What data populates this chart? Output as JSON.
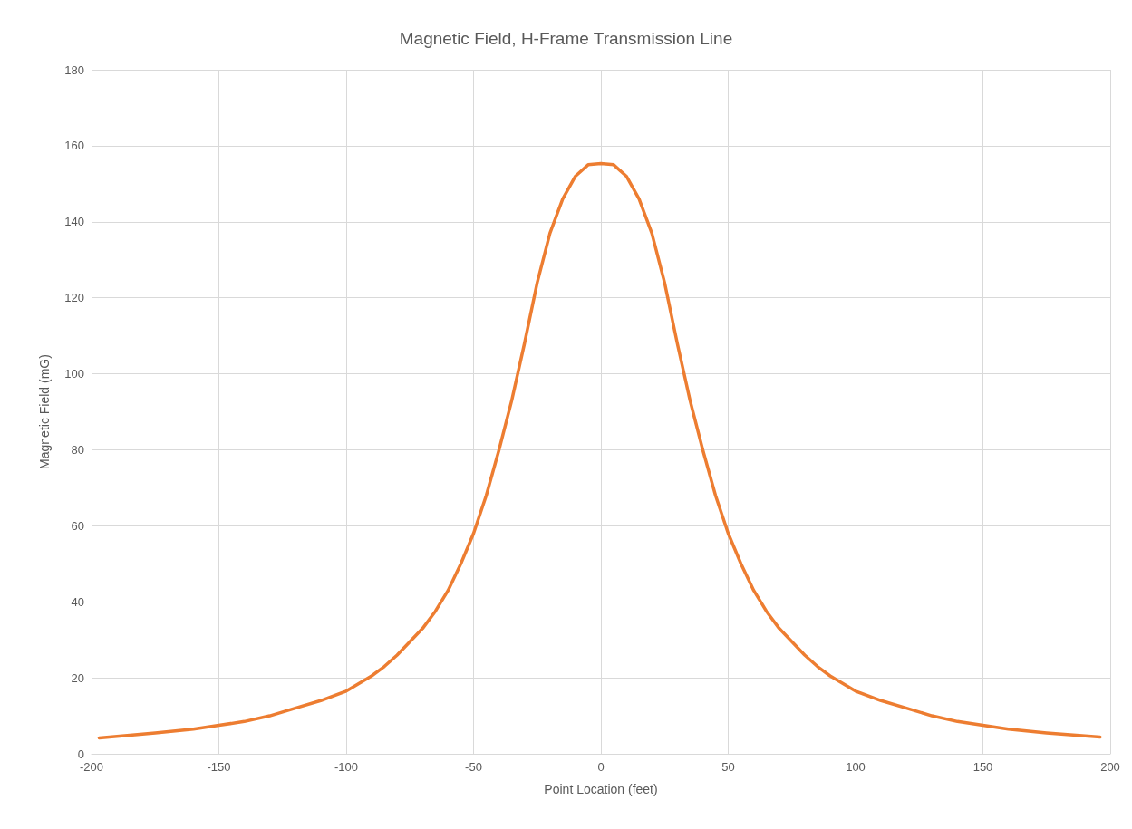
{
  "chart_data": {
    "type": "line",
    "title": "Magnetic Field, H-Frame Transmission Line",
    "xlabel": "Point Location (feet)",
    "ylabel": "Magnetic Field (mG)",
    "x": [
      -197,
      -175,
      -160,
      -150,
      -140,
      -130,
      -120,
      -110,
      -100,
      -90,
      -85,
      -80,
      -75,
      -70,
      -65,
      -60,
      -55,
      -50,
      -45,
      -40,
      -35,
      -30,
      -25,
      -20,
      -15,
      -10,
      -5,
      0,
      5,
      10,
      15,
      20,
      25,
      30,
      35,
      40,
      45,
      50,
      55,
      60,
      65,
      70,
      75,
      80,
      85,
      90,
      100,
      110,
      120,
      130,
      140,
      150,
      160,
      175,
      196
    ],
    "series": [
      {
        "color": "#ed7d31",
        "values": [
          4.2,
          5.5,
          6.5,
          7.5,
          8.5,
          10,
          12,
          14,
          16.5,
          20.5,
          23,
          26,
          29.5,
          33,
          37.5,
          43,
          50,
          58,
          68,
          80,
          93,
          108,
          124,
          137,
          146,
          152,
          155,
          155.3,
          155,
          152,
          146,
          137,
          124,
          108,
          93,
          80,
          68,
          58,
          50,
          43,
          37.5,
          33,
          29.5,
          26,
          23,
          20.5,
          16.5,
          14,
          12,
          10,
          8.5,
          7.5,
          6.5,
          5.5,
          4.4
        ]
      }
    ],
    "xlim": [
      -200,
      200
    ],
    "xticks": [
      -200,
      -150,
      -100,
      -50,
      0,
      50,
      100,
      150,
      200
    ],
    "ylim": [
      0,
      180
    ],
    "yticks": [
      0,
      20,
      40,
      60,
      80,
      100,
      120,
      140,
      160,
      180
    ],
    "grid": true,
    "marker": "none",
    "line_style": "solid"
  }
}
